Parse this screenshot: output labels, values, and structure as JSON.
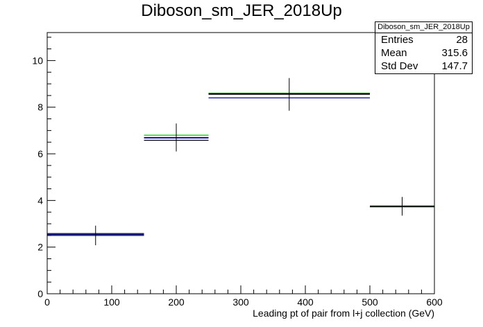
{
  "chart_data": {
    "type": "histogram",
    "title": "Diboson_sm_JER_2018Up",
    "xlabel": "Leading pt of pair from l+j collection (GeV)",
    "ylabel": "",
    "xlim": [
      0,
      600
    ],
    "ylim": [
      0,
      11.2
    ],
    "x_ticks": [
      0,
      100,
      200,
      300,
      400,
      500,
      600
    ],
    "y_ticks": [
      0,
      2,
      4,
      6,
      8,
      10
    ],
    "grid": false,
    "bins": [
      [
        0,
        150
      ],
      [
        150,
        250
      ],
      [
        250,
        500
      ],
      [
        500,
        600
      ]
    ],
    "series": [
      {
        "color": "#00cc00",
        "values": [
          2.5,
          6.8,
          8.6,
          3.72
        ]
      },
      {
        "color": "#000000",
        "values": [
          2.58,
          6.58,
          8.58,
          3.74
        ]
      },
      {
        "color": "#000099",
        "values": [
          2.54,
          6.68,
          8.4,
          3.76
        ]
      }
    ],
    "points": {
      "color": "#000000",
      "x": [
        75,
        200,
        375,
        550
      ],
      "y": [
        2.5,
        6.7,
        8.55,
        3.75
      ],
      "yerr": [
        0.42,
        0.6,
        0.7,
        0.4
      ]
    },
    "stats": {
      "title": "Diboson_sm_JER_2018Up",
      "rows": [
        {
          "label": "Entries",
          "value": "28"
        },
        {
          "label": "Mean",
          "value": "315.6"
        },
        {
          "label": "Std Dev",
          "value": "147.7"
        }
      ]
    }
  }
}
